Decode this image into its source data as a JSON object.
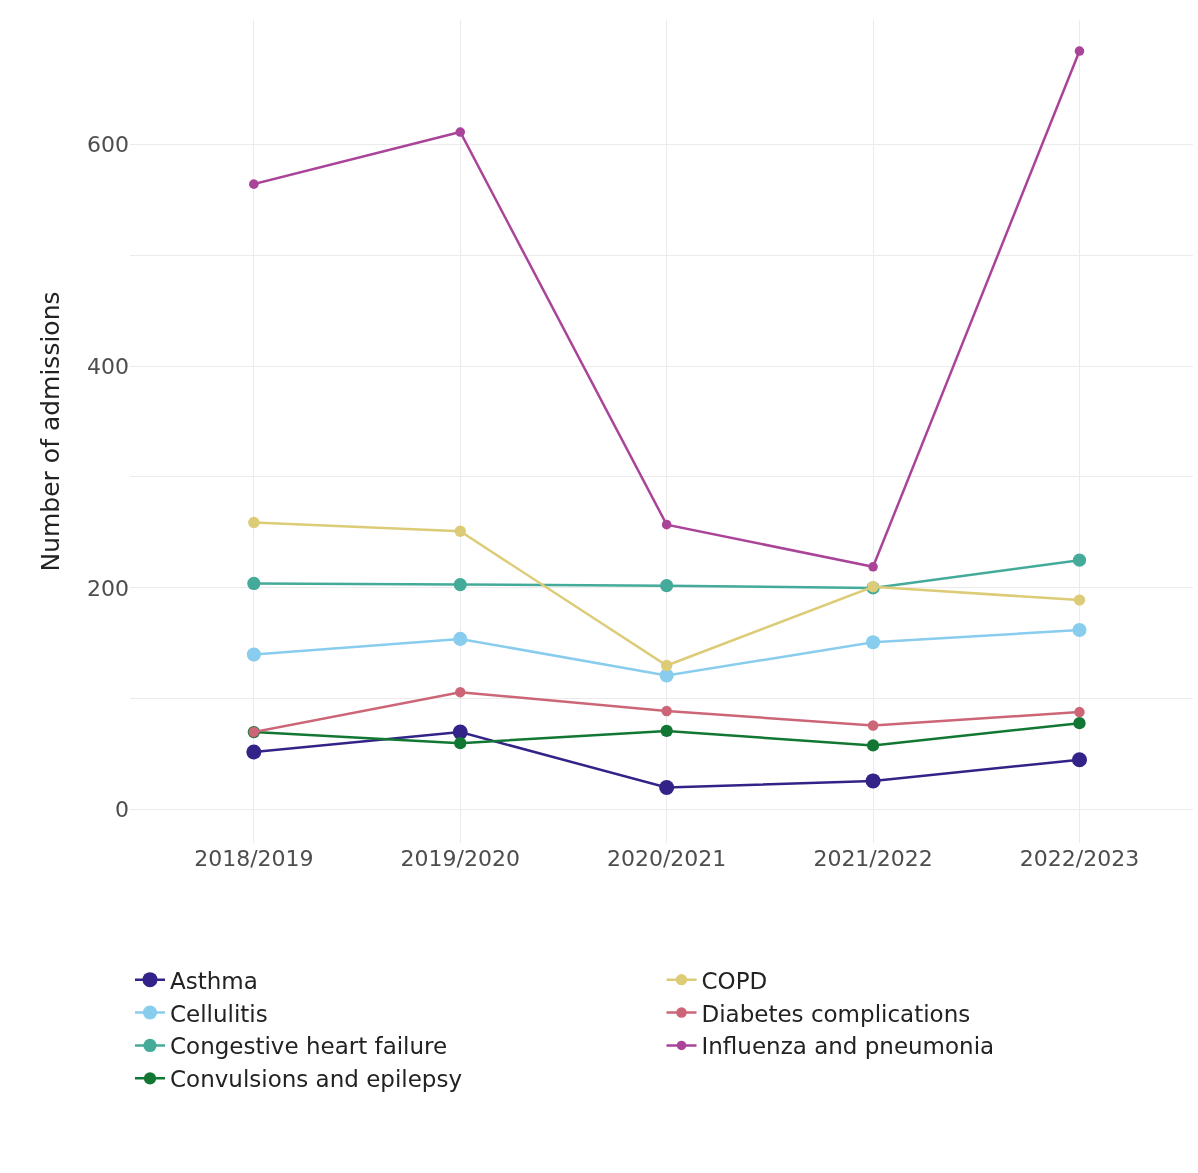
{
  "chart_data": {
    "type": "line",
    "ylabel": "Number of admissions",
    "categories": [
      "2018/2019",
      "2019/2020",
      "2020/2021",
      "2021/2022",
      "2022/2023"
    ],
    "series": [
      {
        "name": "Asthma",
        "color": "#332288",
        "values": [
          52,
          70,
          20,
          26,
          45
        ]
      },
      {
        "name": "Cellulitis",
        "color": "#88ccee",
        "values": [
          140,
          154,
          121,
          151,
          162
        ]
      },
      {
        "name": "Congestive heart failure",
        "color": "#44aa99",
        "values": [
          204,
          203,
          202,
          200,
          225
        ]
      },
      {
        "name": "Convulsions and epilepsy",
        "color": "#117733",
        "values": [
          70,
          60,
          71,
          58,
          78
        ]
      },
      {
        "name": "COPD",
        "color": "#ddcc77",
        "values": [
          259,
          251,
          130,
          201,
          189
        ]
      },
      {
        "name": "Diabetes complications",
        "color": "#cc6677",
        "values": [
          70,
          106,
          89,
          76,
          88
        ]
      },
      {
        "name": "Influenza and pneumonia",
        "color": "#aa4499",
        "values": [
          564,
          611,
          257,
          219,
          684
        ]
      }
    ],
    "ylim": [
      -30,
      712
    ],
    "yticks": [
      0,
      {
        "value": 100,
        "label": null
      },
      200,
      {
        "value": 300,
        "label": null
      },
      400,
      {
        "value": 500,
        "label": null
      },
      600
    ],
    "grid": true,
    "legend": "bottom",
    "marker": "circle",
    "line_style": "solid"
  }
}
